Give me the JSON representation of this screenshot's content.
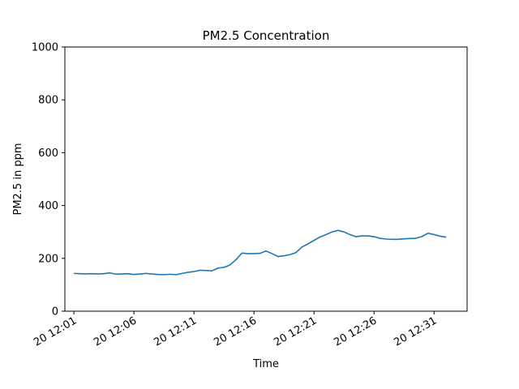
{
  "chart_data": {
    "type": "line",
    "title": "PM2.5 Concentration",
    "xlabel": "Time",
    "ylabel": "PM2.5 in ppm",
    "ylim": [
      0,
      1000
    ],
    "xlim": [
      "20 12:00:15",
      "20 12:33:45"
    ],
    "grid": false,
    "legend": "none",
    "line_color": "#1f77b4",
    "x_ticks": [
      {
        "value": "20 12:01",
        "label": "20 12:01"
      },
      {
        "value": "20 12:06",
        "label": "20 12:06"
      },
      {
        "value": "20 12:11",
        "label": "20 12:11"
      },
      {
        "value": "20 12:16",
        "label": "20 12:16"
      },
      {
        "value": "20 12:21",
        "label": "20 12:21"
      },
      {
        "value": "20 12:26",
        "label": "20 12:26"
      },
      {
        "value": "20 12:31",
        "label": "20 12:31"
      }
    ],
    "y_ticks": [
      {
        "value": 0,
        "label": "0"
      },
      {
        "value": 200,
        "label": "200"
      },
      {
        "value": 400,
        "label": "400"
      },
      {
        "value": 600,
        "label": "600"
      },
      {
        "value": 800,
        "label": "800"
      },
      {
        "value": 1000,
        "label": "1000"
      }
    ],
    "series": [
      {
        "x": [
          "20 12:01:00",
          "20 12:01:30",
          "20 12:02:00",
          "20 12:02:30",
          "20 12:03:00",
          "20 12:03:30",
          "20 12:04:00",
          "20 12:04:30",
          "20 12:05:00",
          "20 12:05:30",
          "20 12:06:00",
          "20 12:06:30",
          "20 12:07:00",
          "20 12:07:30",
          "20 12:08:00",
          "20 12:08:30",
          "20 12:09:00",
          "20 12:09:30",
          "20 12:10:00",
          "20 12:10:30",
          "20 12:11:00",
          "20 12:11:30",
          "20 12:12:00",
          "20 12:12:30",
          "20 12:13:00",
          "20 12:13:30",
          "20 12:14:00",
          "20 12:14:30",
          "20 12:15:00",
          "20 12:15:30",
          "20 12:16:00",
          "20 12:16:30",
          "20 12:17:00",
          "20 12:17:30",
          "20 12:18:00",
          "20 12:18:30",
          "20 12:19:00",
          "20 12:19:30",
          "20 12:20:00",
          "20 12:20:30",
          "20 12:21:00",
          "20 12:21:30",
          "20 12:22:00",
          "20 12:22:30",
          "20 12:23:00",
          "20 12:23:30",
          "20 12:24:00",
          "20 12:24:30",
          "20 12:25:00",
          "20 12:25:30",
          "20 12:26:00",
          "20 12:26:30",
          "20 12:27:00",
          "20 12:27:30",
          "20 12:28:00",
          "20 12:28:30",
          "20 12:29:00",
          "20 12:29:30",
          "20 12:30:00",
          "20 12:30:30",
          "20 12:31:00",
          "20 12:31:30",
          "20 12:32:00"
        ],
        "values": [
          143,
          142,
          141,
          142,
          141,
          142,
          145,
          140,
          141,
          142,
          139,
          141,
          143,
          141,
          139,
          138,
          140,
          138,
          143,
          147,
          150,
          155,
          154,
          153,
          163,
          166,
          175,
          195,
          220,
          218,
          218,
          219,
          228,
          218,
          207,
          210,
          214,
          222,
          243,
          255,
          268,
          281,
          290,
          300,
          306,
          300,
          290,
          282,
          285,
          285,
          282,
          276,
          273,
          272,
          272,
          274,
          275,
          276,
          283,
          295,
          290,
          284,
          280
        ]
      }
    ]
  }
}
